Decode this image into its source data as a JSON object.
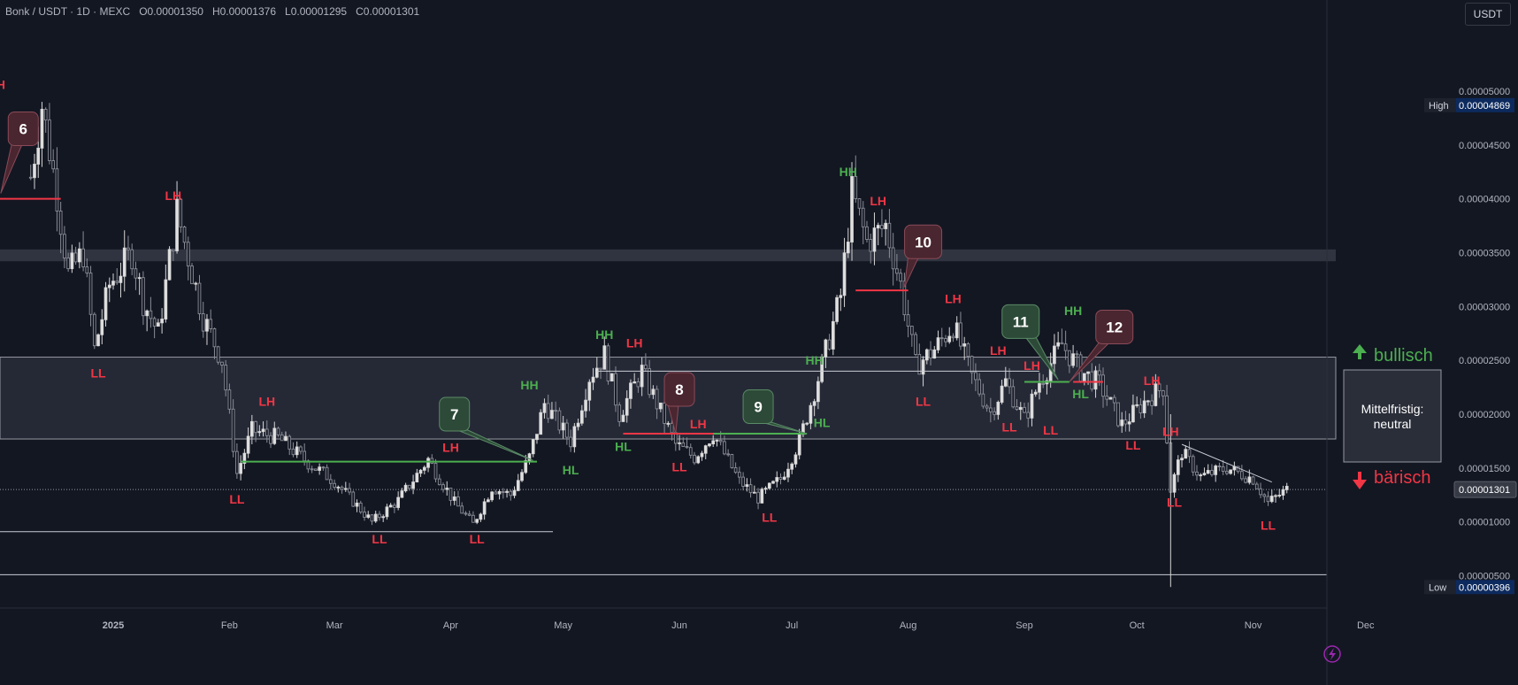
{
  "header": {
    "symbol": "Bonk / USDT",
    "sep1": " · ",
    "timeframe": "1D",
    "sep2": " · ",
    "exchange": "MEXC",
    "open": "O0.00001350",
    "high": "H0.00001376",
    "low": "L0.00001295",
    "close": "C0.00001301"
  },
  "currency_button": "USDT",
  "colors": {
    "background": "#131722",
    "up_candle": "#d6d6d6",
    "down_candle": "#8a8d96",
    "green": "#4caf50",
    "red": "#f23645",
    "zone": "#2a2e3e"
  },
  "chart_data": {
    "type": "candlestick",
    "title": "",
    "y_axis_ticks": [
      "0.00005000",
      "0.00004500",
      "0.00004000",
      "0.00003500",
      "0.00003000",
      "0.00002500",
      "0.00002000",
      "0.00001500",
      "0.00001000",
      "0.00000500"
    ],
    "x_axis_ticks": [
      "2025",
      "Feb",
      "Mar",
      "Apr",
      "May",
      "Jun",
      "Jul",
      "Aug",
      "Sep",
      "Oct",
      "Nov",
      "Dec"
    ],
    "ylim": [
      2.5e-06,
      5.47e-05
    ],
    "price_tags": [
      {
        "label": "High",
        "value": "0.00004869"
      },
      {
        "label": "",
        "value": "0.00001301"
      },
      {
        "label": "Low",
        "value": "0.00000396"
      }
    ],
    "price_path": [
      {
        "date": "2024-12-10",
        "price": 4.2e-05
      },
      {
        "date": "2024-12-13",
        "price": 4.87e-05
      },
      {
        "date": "2024-12-17",
        "price": 4.05e-05
      },
      {
        "date": "2024-12-20",
        "price": 3.3e-05
      },
      {
        "date": "2024-12-24",
        "price": 3.5e-05
      },
      {
        "date": "2024-12-27",
        "price": 2.6e-05
      },
      {
        "date": "2024-12-31",
        "price": 3.2e-05
      },
      {
        "date": "2025-01-06",
        "price": 3.5e-05
      },
      {
        "date": "2025-01-09",
        "price": 3.05e-05
      },
      {
        "date": "2025-01-13",
        "price": 2.75e-05
      },
      {
        "date": "2025-01-18",
        "price": 3.88e-05
      },
      {
        "date": "2025-01-20",
        "price": 3.6e-05
      },
      {
        "date": "2025-01-25",
        "price": 2.9e-05
      },
      {
        "date": "2025-01-30",
        "price": 2.5e-05
      },
      {
        "date": "2025-02-03",
        "price": 1.45e-05
      },
      {
        "date": "2025-02-07",
        "price": 1.85e-05
      },
      {
        "date": "2025-02-14",
        "price": 1.78e-05
      },
      {
        "date": "2025-02-22",
        "price": 1.55e-05
      },
      {
        "date": "2025-03-01",
        "price": 1.38e-05
      },
      {
        "date": "2025-03-11",
        "price": 1e-05
      },
      {
        "date": "2025-03-18",
        "price": 1.2e-05
      },
      {
        "date": "2025-03-26",
        "price": 1.58e-05
      },
      {
        "date": "2025-04-02",
        "price": 1.18e-05
      },
      {
        "date": "2025-04-07",
        "price": 9.8e-06
      },
      {
        "date": "2025-04-12",
        "price": 1.32e-05
      },
      {
        "date": "2025-04-17",
        "price": 1.25e-05
      },
      {
        "date": "2025-04-22",
        "price": 1.6e-05
      },
      {
        "date": "2025-04-26",
        "price": 2.1e-05
      },
      {
        "date": "2025-05-03",
        "price": 1.75e-05
      },
      {
        "date": "2025-05-08",
        "price": 2.35e-05
      },
      {
        "date": "2025-05-12",
        "price": 2.55e-05
      },
      {
        "date": "2025-05-16",
        "price": 2e-05
      },
      {
        "date": "2025-05-22",
        "price": 2.4e-05
      },
      {
        "date": "2025-05-31",
        "price": 1.72e-05
      },
      {
        "date": "2025-06-05",
        "price": 1.6e-05
      },
      {
        "date": "2025-06-10",
        "price": 1.82e-05
      },
      {
        "date": "2025-06-17",
        "price": 1.38e-05
      },
      {
        "date": "2025-06-22",
        "price": 1.22e-05
      },
      {
        "date": "2025-06-28",
        "price": 1.4e-05
      },
      {
        "date": "2025-07-03",
        "price": 1.75e-05
      },
      {
        "date": "2025-07-09",
        "price": 2.45e-05
      },
      {
        "date": "2025-07-14",
        "price": 3.1e-05
      },
      {
        "date": "2025-07-17",
        "price": 4.05e-05
      },
      {
        "date": "2025-07-21",
        "price": 3.6e-05
      },
      {
        "date": "2025-07-26",
        "price": 3.75e-05
      },
      {
        "date": "2025-07-30",
        "price": 3.2e-05
      },
      {
        "date": "2025-08-03",
        "price": 2.45e-05
      },
      {
        "date": "2025-08-08",
        "price": 2.6e-05
      },
      {
        "date": "2025-08-13",
        "price": 2.83e-05
      },
      {
        "date": "2025-08-18",
        "price": 2.35e-05
      },
      {
        "date": "2025-08-23",
        "price": 2.02e-05
      },
      {
        "date": "2025-08-27",
        "price": 2.3e-05
      },
      {
        "date": "2025-09-01",
        "price": 1.95e-05
      },
      {
        "date": "2025-09-05",
        "price": 2.3e-05
      },
      {
        "date": "2025-09-11",
        "price": 2.65e-05
      },
      {
        "date": "2025-09-16",
        "price": 2.4e-05
      },
      {
        "date": "2025-09-21",
        "price": 2.28e-05
      },
      {
        "date": "2025-09-27",
        "price": 1.9e-05
      },
      {
        "date": "2025-10-04",
        "price": 2.15e-05
      },
      {
        "date": "2025-10-08",
        "price": 2.25e-05
      },
      {
        "date": "2025-10-10",
        "price": 1.3e-05
      },
      {
        "date": "2025-10-13",
        "price": 1.65e-05
      },
      {
        "date": "2025-10-18",
        "price": 1.42e-05
      },
      {
        "date": "2025-10-25",
        "price": 1.5e-05
      },
      {
        "date": "2025-11-01",
        "price": 1.4e-05
      },
      {
        "date": "2025-11-05",
        "price": 1.18e-05
      },
      {
        "date": "2025-11-10",
        "price": 1.3e-05
      }
    ],
    "swing_labels": [
      {
        "text": "LH",
        "color": "red",
        "date": "2024-12-01",
        "price": 5.02e-05
      },
      {
        "text": "LL",
        "color": "red",
        "date": "2024-12-28",
        "price": 2.34e-05
      },
      {
        "text": "LH",
        "color": "red",
        "date": "2025-01-17",
        "price": 3.99e-05
      },
      {
        "text": "LH",
        "color": "red",
        "date": "2025-02-11",
        "price": 2.08e-05
      },
      {
        "text": "LL",
        "color": "red",
        "date": "2025-02-03",
        "price": 1.17e-05
      },
      {
        "text": "LL",
        "color": "red",
        "date": "2025-03-13",
        "price": 8e-06
      },
      {
        "text": "LH",
        "color": "red",
        "date": "2025-04-01",
        "price": 1.65e-05
      },
      {
        "text": "LL",
        "color": "red",
        "date": "2025-04-08",
        "price": 8e-06
      },
      {
        "text": "HH",
        "color": "green",
        "date": "2025-04-22",
        "price": 2.23e-05
      },
      {
        "text": "HL",
        "color": "green",
        "date": "2025-05-03",
        "price": 1.44e-05
      },
      {
        "text": "HH",
        "color": "green",
        "date": "2025-05-12",
        "price": 2.7e-05
      },
      {
        "text": "LH",
        "color": "red",
        "date": "2025-05-20",
        "price": 2.62e-05
      },
      {
        "text": "HL",
        "color": "green",
        "date": "2025-05-17",
        "price": 1.66e-05
      },
      {
        "text": "LL",
        "color": "red",
        "date": "2025-06-01",
        "price": 1.47e-05
      },
      {
        "text": "LH",
        "color": "red",
        "date": "2025-06-06",
        "price": 1.87e-05
      },
      {
        "text": "LL",
        "color": "red",
        "date": "2025-06-25",
        "price": 1e-05
      },
      {
        "text": "HH",
        "color": "green",
        "date": "2025-07-07",
        "price": 2.46e-05
      },
      {
        "text": "HL",
        "color": "green",
        "date": "2025-07-09",
        "price": 1.88e-05
      },
      {
        "text": "HH",
        "color": "green",
        "date": "2025-07-16",
        "price": 4.21e-05
      },
      {
        "text": "LH",
        "color": "red",
        "date": "2025-07-24",
        "price": 3.94e-05
      },
      {
        "text": "LH",
        "color": "red",
        "date": "2025-08-13",
        "price": 3.03e-05
      },
      {
        "text": "LL",
        "color": "red",
        "date": "2025-08-05",
        "price": 2.08e-05
      },
      {
        "text": "LH",
        "color": "red",
        "date": "2025-08-25",
        "price": 2.55e-05
      },
      {
        "text": "LH",
        "color": "red",
        "date": "2025-09-03",
        "price": 2.41e-05
      },
      {
        "text": "LL",
        "color": "red",
        "date": "2025-08-28",
        "price": 1.84e-05
      },
      {
        "text": "LL",
        "color": "red",
        "date": "2025-09-08",
        "price": 1.81e-05
      },
      {
        "text": "HH",
        "color": "green",
        "date": "2025-09-14",
        "price": 2.92e-05
      },
      {
        "text": "HL",
        "color": "green",
        "date": "2025-09-16",
        "price": 2.15e-05
      },
      {
        "text": "LH",
        "color": "red",
        "date": "2025-10-05",
        "price": 2.27e-05
      },
      {
        "text": "LL",
        "color": "red",
        "date": "2025-09-30",
        "price": 1.67e-05
      },
      {
        "text": "LH",
        "color": "red",
        "date": "2025-10-10",
        "price": 1.8e-05
      },
      {
        "text": "LL",
        "color": "red",
        "date": "2025-10-11",
        "price": 1.14e-05
      },
      {
        "text": "LL",
        "color": "red",
        "date": "2025-11-05",
        "price": 9.3e-06
      }
    ],
    "number_callouts": [
      {
        "n": "6",
        "color": "red",
        "date": "2024-12-08",
        "price": 4.65e-05,
        "tip_date": "2024-12-02",
        "tip_price": 4.05e-05
      },
      {
        "n": "7",
        "color": "green",
        "date": "2025-04-02",
        "price": 2e-05,
        "tip_date": "2025-04-23",
        "tip_price": 1.57e-05
      },
      {
        "n": "8",
        "color": "red",
        "date": "2025-06-01",
        "price": 2.23e-05,
        "tip_date": "2025-05-31",
        "tip_price": 1.82e-05
      },
      {
        "n": "9",
        "color": "green",
        "date": "2025-06-22",
        "price": 2.07e-05,
        "tip_date": "2025-07-05",
        "tip_price": 1.82e-05
      },
      {
        "n": "10",
        "color": "red",
        "date": "2025-08-05",
        "price": 3.6e-05,
        "tip_date": "2025-07-31",
        "tip_price": 3.18e-05
      },
      {
        "n": "11",
        "color": "green",
        "date": "2025-08-31",
        "price": 2.86e-05,
        "tip_date": "2025-09-10",
        "tip_price": 2.32e-05
      },
      {
        "n": "12",
        "color": "red",
        "date": "2025-09-25",
        "price": 2.81e-05,
        "tip_date": "2025-09-13",
        "tip_price": 2.3e-05
      }
    ],
    "bias_box": {
      "bullish": "bullisch",
      "neutral_line1": "Mittelfristig:",
      "neutral_line2": "neutral",
      "bearish": "bärisch"
    }
  }
}
